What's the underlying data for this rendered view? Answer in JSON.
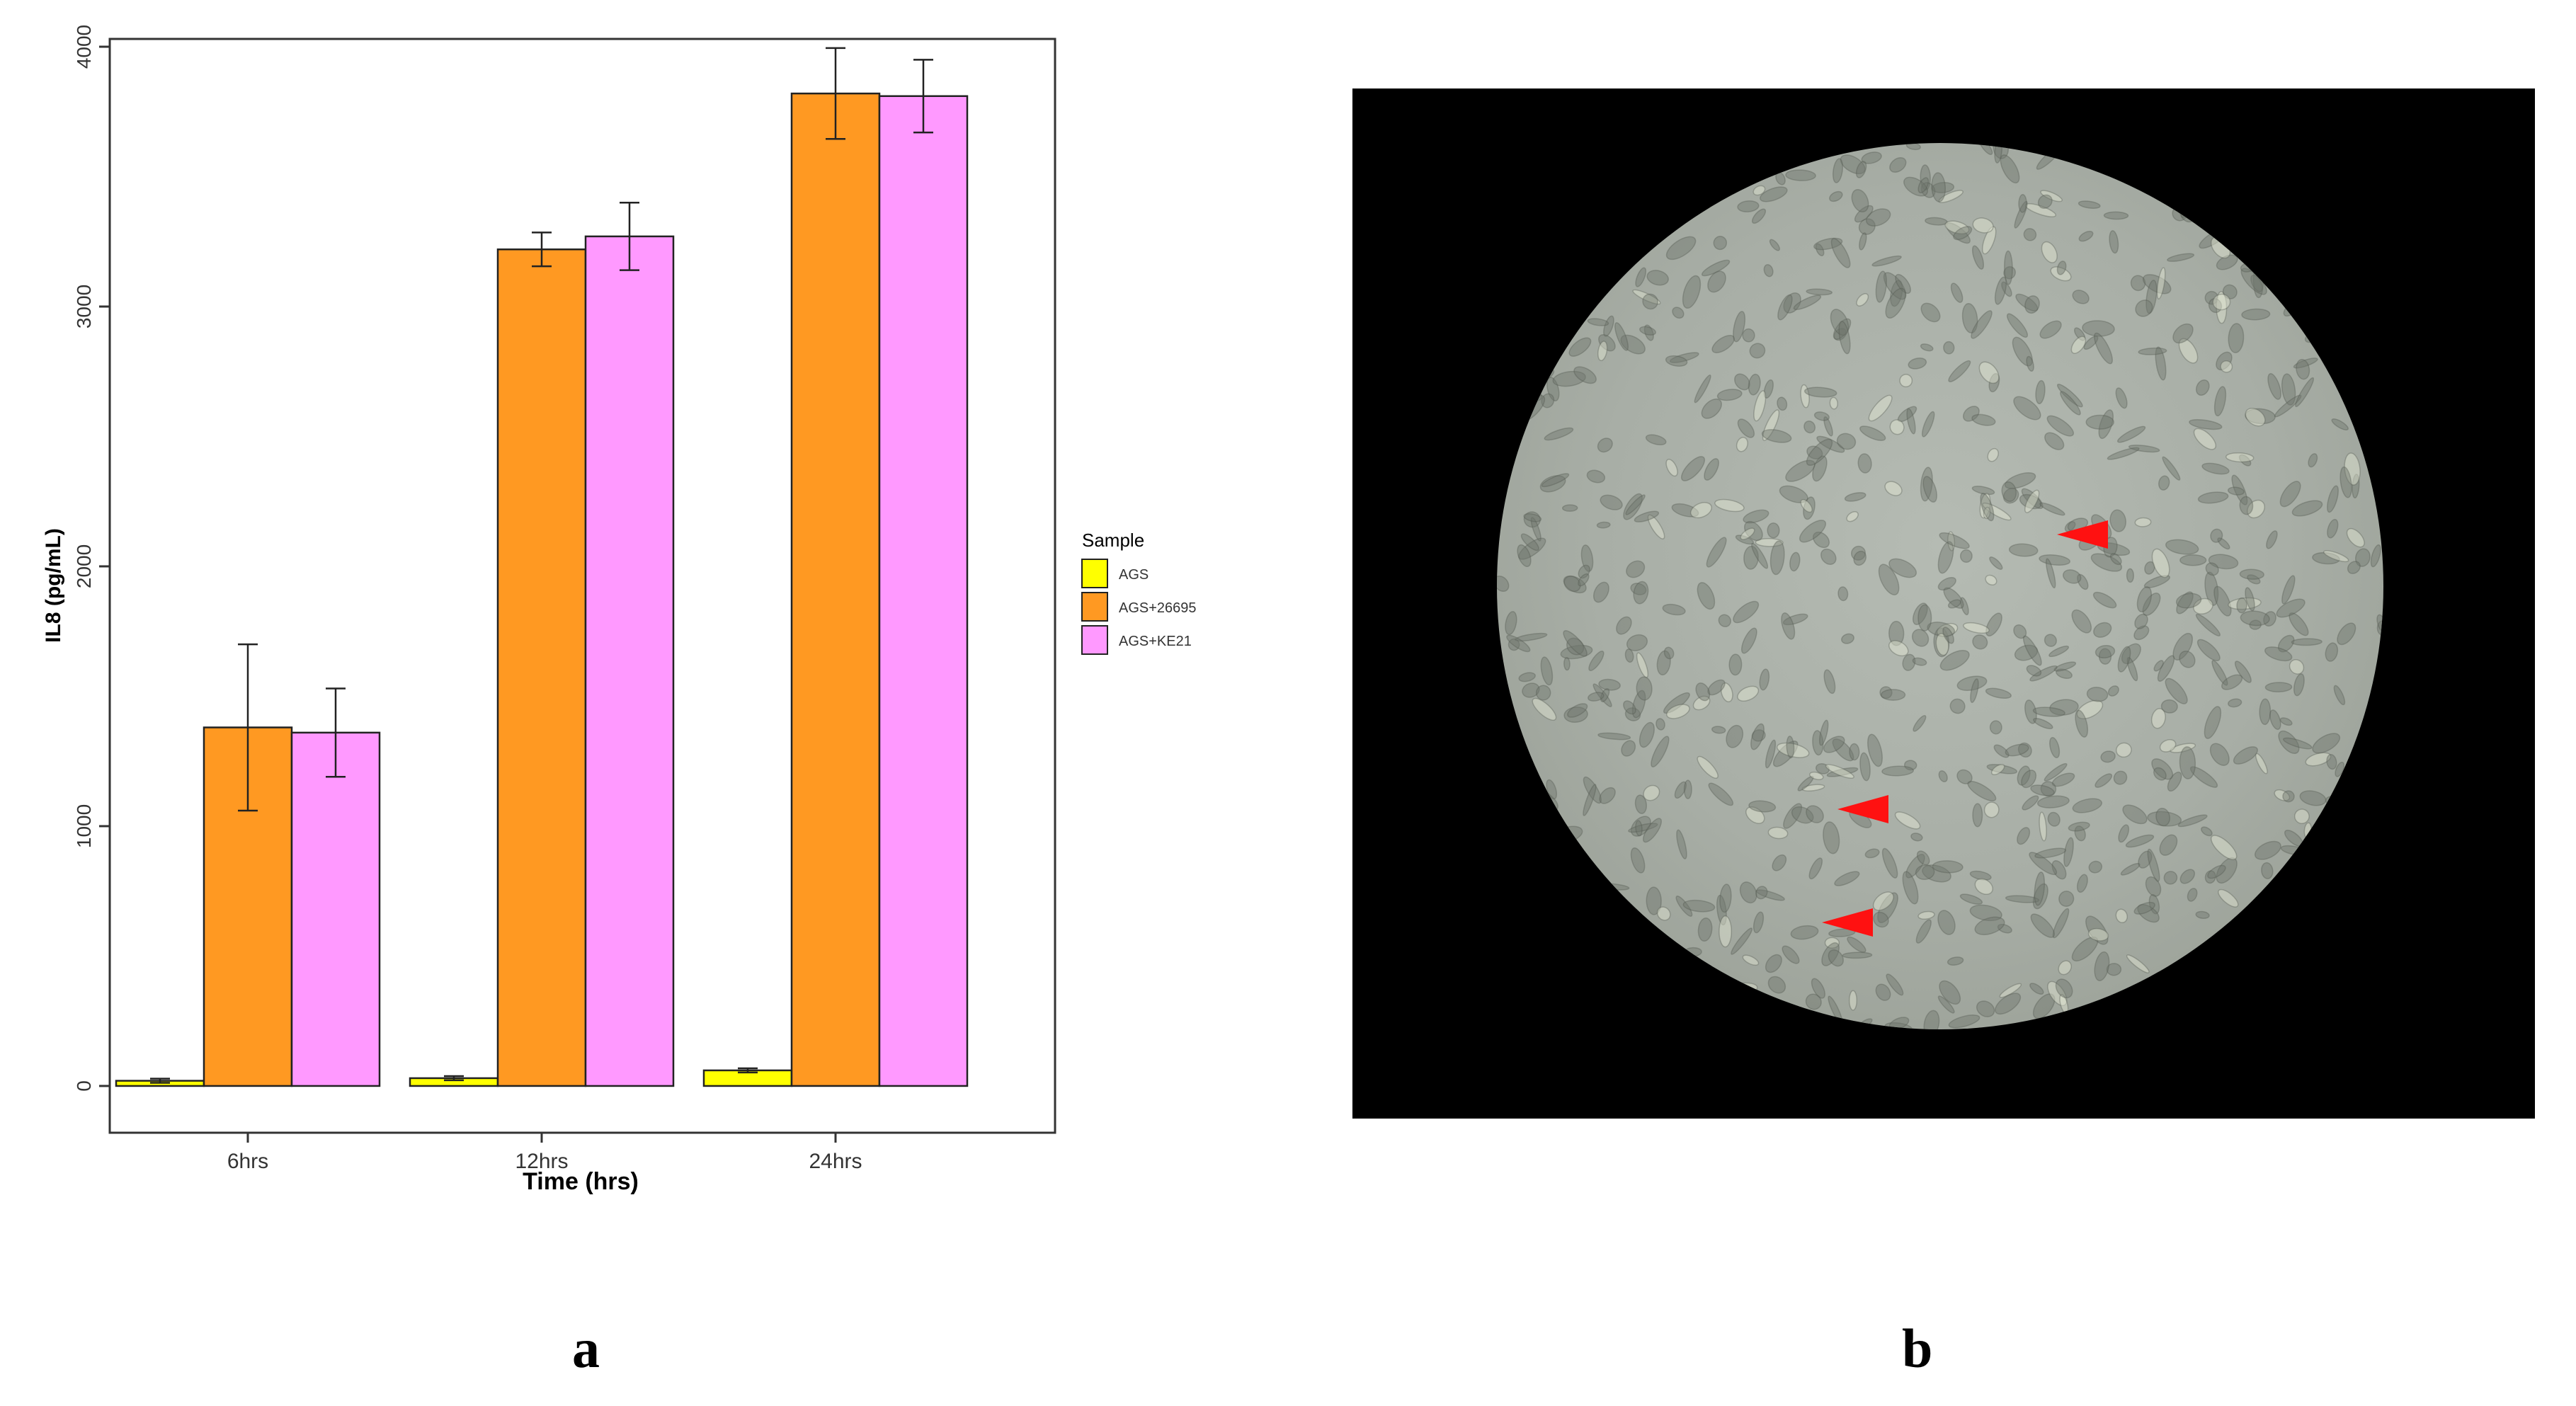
{
  "chart_data": {
    "type": "bar",
    "title": "",
    "xlabel": "Time (hrs)",
    "ylabel": "IL8 (pg/mL)",
    "ylim": [
      -180,
      4030
    ],
    "yticks": [
      "0",
      "1000",
      "2000",
      "3000",
      "4000"
    ],
    "ytick_values": [
      0,
      1000,
      2000,
      3000,
      4000
    ],
    "categories": [
      "6hrs",
      "12hrs",
      "24hrs"
    ],
    "legend": {
      "title": "Sample",
      "position": "right"
    },
    "series": [
      {
        "name": "AGS",
        "color": "#FFFF00",
        "values": [
          20,
          30,
          60
        ],
        "errors": [
          8,
          8,
          8
        ]
      },
      {
        "name": "AGS+26695",
        "color": "#FF9922",
        "values": [
          1380,
          3220,
          3820
        ],
        "errors": [
          320,
          65,
          175
        ]
      },
      {
        "name": "AGS+KE21",
        "color": "#FF99FF",
        "values": [
          1360,
          3270,
          3810
        ],
        "errors": [
          170,
          130,
          140
        ]
      }
    ]
  },
  "panel_b": {
    "annotation": "red-arrowhead",
    "arrowhead_count": 3
  },
  "labels": {
    "a": "a",
    "b": "b"
  }
}
